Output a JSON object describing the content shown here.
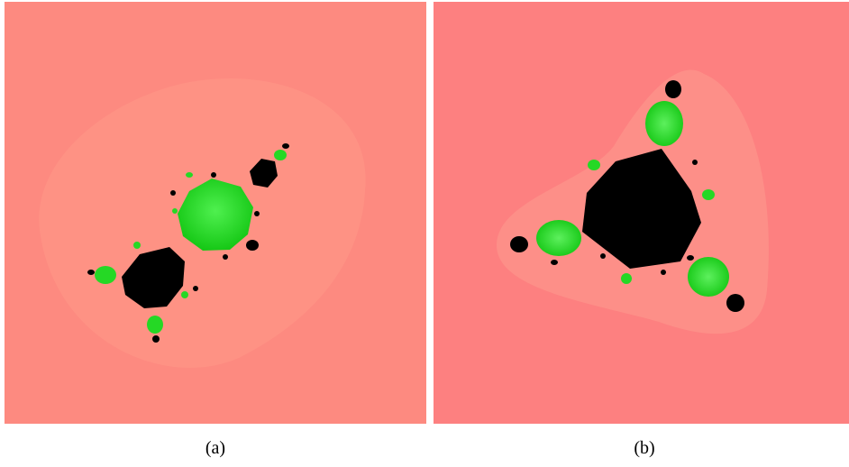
{
  "figure": {
    "panels": [
      {
        "caption": "(a)"
      },
      {
        "caption": "(b)"
      }
    ]
  },
  "colors": {
    "background_a": "#fd8a80",
    "halo_a": "#fe9b8a",
    "background_b": "#fd8080",
    "halo_b": "#fe9b8e",
    "filled_set": "#000000",
    "green_region": "#22dc22",
    "green_light": "#55f055"
  }
}
